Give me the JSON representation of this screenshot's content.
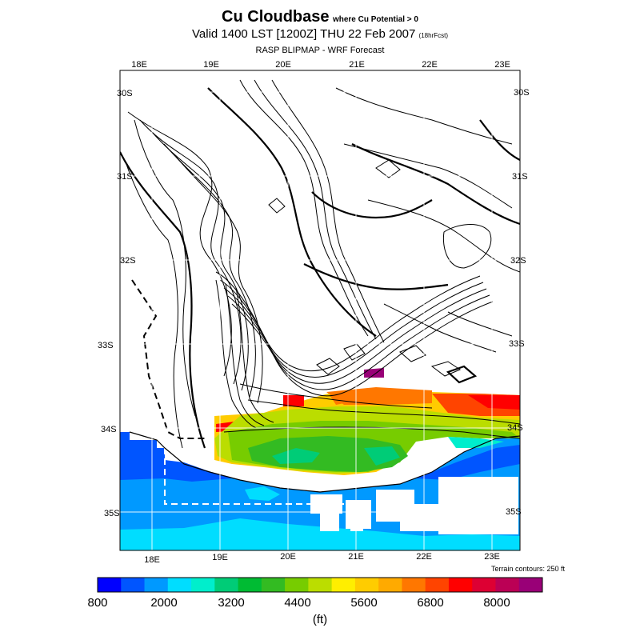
{
  "header": {
    "title": "Cu Cloudbase",
    "title_qualifier": "where Cu Potential > 0",
    "valid_line": "Valid 1400 LST [1200Z] THU 22 Feb 2007",
    "forecast_tag": "(18hrFcst)",
    "model_line": "RASP BLIPMAP - WRF Forecast"
  },
  "map": {
    "top_lon_labels": [
      "18E",
      "19E",
      "20E",
      "21E",
      "22E",
      "23E"
    ],
    "bottom_lon_labels": [
      "18E",
      "19E",
      "20E",
      "21E",
      "22E",
      "23E"
    ],
    "left_lat_labels": [
      "30S",
      "31S",
      "32S",
      "33S",
      "34S",
      "35S"
    ],
    "right_lat_labels": [
      "30S",
      "31S",
      "32S",
      "33S",
      "34S",
      "35S"
    ],
    "terrain_note": "Terrain contours: 250 ft"
  },
  "colorbar": {
    "colors": [
      "#0000ff",
      "#0055ff",
      "#0099ff",
      "#00ddff",
      "#00eecc",
      "#00cc77",
      "#00bb33",
      "#33bb22",
      "#77cc00",
      "#bbdd00",
      "#ffee00",
      "#ffcc00",
      "#ffaa00",
      "#ff7700",
      "#ff4400",
      "#ff0000",
      "#dd0033",
      "#bb0055",
      "#990077"
    ],
    "tick_labels": [
      "800",
      "2000",
      "3200",
      "4400",
      "5600",
      "6800",
      "8000"
    ],
    "units": "(ft)"
  },
  "colors": {
    "ocean": "#0099ff",
    "ocean_deep": "#0055ff",
    "coast_cyan": "#00ddff",
    "land_background": "#ffffff"
  }
}
